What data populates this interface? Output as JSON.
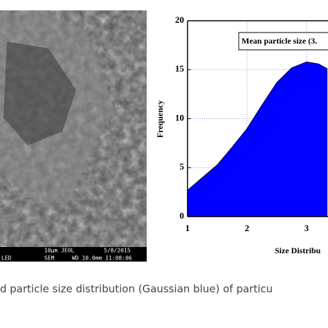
{
  "sem_image": {
    "scale_text": "10μm JEOL",
    "date": "5/8/2015",
    "left_text": "LED",
    "mode": "SEM",
    "settings": "WD 10.0mm 11:08:06"
  },
  "chart_data": {
    "type": "area",
    "ylabel": "Frequency",
    "xlabel": "Size Distribu",
    "annotation": "Mean particle size (3.",
    "x": [
      1,
      1.25,
      1.5,
      1.75,
      2,
      2.25,
      2.5,
      2.75,
      3,
      3.2,
      3.35
    ],
    "values": [
      2.7,
      4,
      5.3,
      7.1,
      9,
      11.4,
      13.7,
      15.2,
      15.8,
      15.6,
      15.1
    ],
    "color": "#0000ff",
    "xlim": [
      1,
      3.36
    ],
    "ylim": [
      0,
      20
    ],
    "xticks": [
      1,
      2,
      3
    ],
    "yticks": [
      0,
      5,
      10,
      15,
      20
    ],
    "grid": true
  },
  "caption": "d particle size distribution (Gaussian blue) of particu"
}
